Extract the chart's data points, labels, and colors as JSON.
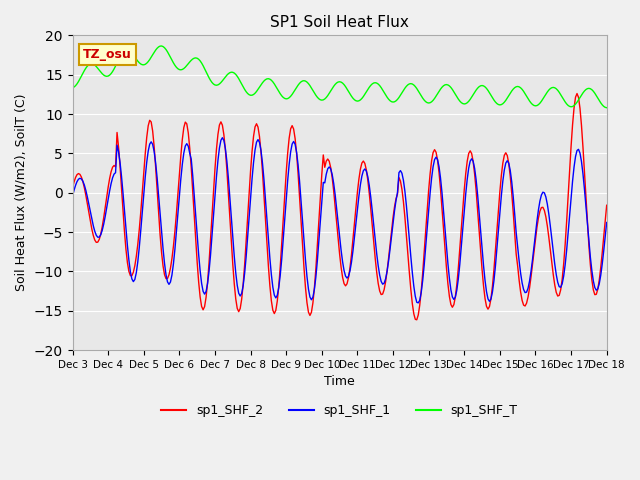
{
  "title": "SP1 Soil Heat Flux",
  "xlabel": "Time",
  "ylabel": "Soil Heat Flux (W/m2), SoilT (C)",
  "ylim": [
    -20,
    20
  ],
  "yticks": [
    -20,
    -15,
    -10,
    -5,
    0,
    5,
    10,
    15,
    20
  ],
  "bg_color": "#e8e8e8",
  "fig_color": "#f0f0f0",
  "tz_label": "TZ_osu",
  "tz_box_color": "#ffffcc",
  "tz_text_color": "#cc0000",
  "legend": [
    "sp1_SHF_2",
    "sp1_SHF_1",
    "sp1_SHF_T"
  ],
  "colors": [
    "red",
    "blue",
    "lime"
  ],
  "x_tick_labels": [
    "Dec 3",
    "Dec 4",
    "Dec 5",
    "Dec 6",
    "Dec 7",
    "Dec 8",
    "Dec 9",
    "Dec 10",
    "Dec 11",
    "Dec 12",
    "Dec 13",
    "Dec 14",
    "Dec 15",
    "Dec 16",
    "Dec 17",
    "Dec 18"
  ],
  "x_tick_positions": [
    0,
    24,
    48,
    72,
    96,
    120,
    144,
    168,
    192,
    216,
    240,
    264,
    288,
    312,
    336,
    360
  ],
  "xlim": [
    0,
    360
  ]
}
